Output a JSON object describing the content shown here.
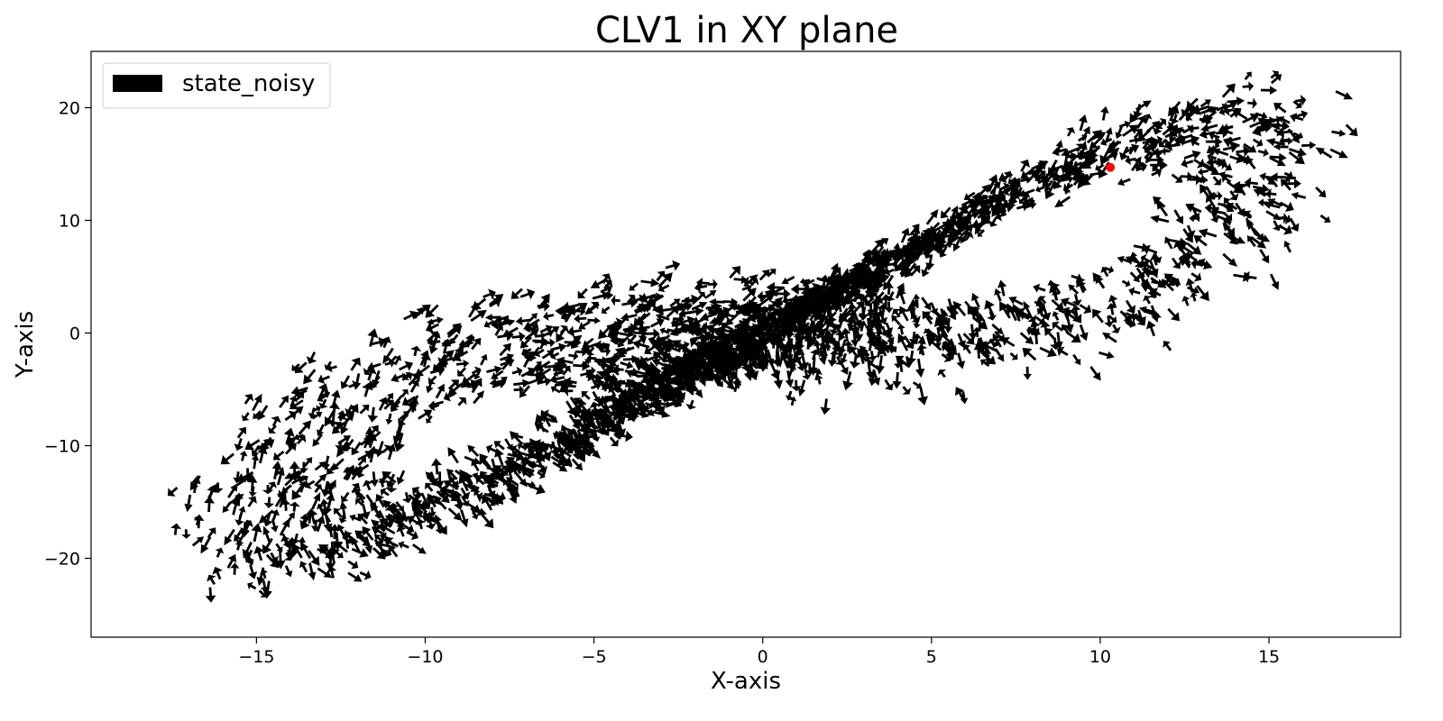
{
  "chart_data": {
    "type": "quiver",
    "title": "CLV1 in XY plane",
    "xlabel": "X-axis",
    "ylabel": "Y-axis",
    "xlim": [
      -19.9,
      18.9
    ],
    "ylim": [
      -27.0,
      25.0
    ],
    "xticks": [
      -15,
      -10,
      -5,
      0,
      5,
      10,
      15
    ],
    "xtick_labels": [
      "−15",
      "−10",
      "−5",
      "0",
      "5",
      "10",
      "15"
    ],
    "yticks": [
      -20,
      -10,
      0,
      10,
      20
    ],
    "ytick_labels": [
      "−20",
      "−10",
      "0",
      "10",
      "20"
    ],
    "grid": false,
    "legend": {
      "position": "top-left",
      "entries": [
        "state_noisy"
      ]
    },
    "series": [
      {
        "name": "state_noisy",
        "color": "#000000",
        "description": "CLV1 direction vectors plotted along a Lorenz-attractor trajectory in the X–Y plane, forming a butterfly-shaped figure-eight with lobe centres near (−8.5, −8.5) and (8.5, 8.5)",
        "x_range": [
          -18.0,
          17.3
        ],
        "y_range": [
          -24.5,
          23.0
        ]
      }
    ],
    "marker": {
      "label": "red point",
      "x": 10.3,
      "y": 14.7,
      "color": "#ff0000"
    }
  }
}
